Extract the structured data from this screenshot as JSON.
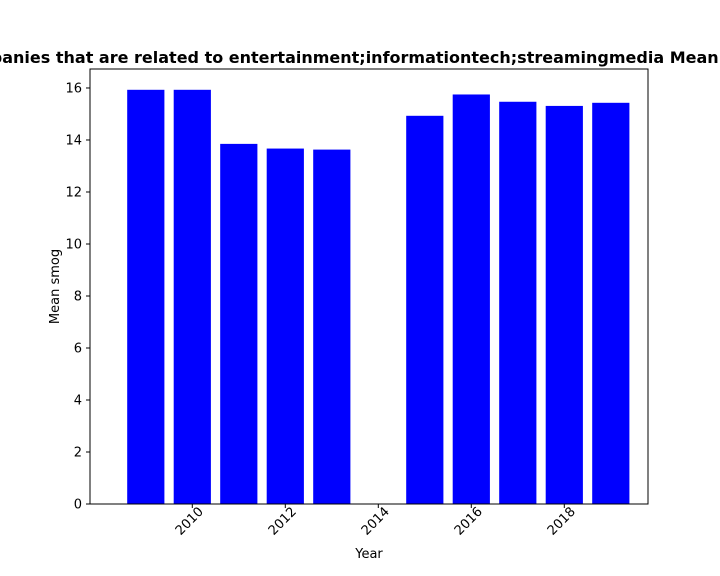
{
  "chart_data": {
    "type": "bar",
    "title": "Mean smog in private companies that are related to entertainment;informationtech;streamingmedia Mean smog in private companies",
    "xlabel": "Year",
    "ylabel": "Mean smog",
    "x": [
      2009,
      2010,
      2011,
      2012,
      2013,
      2015,
      2016,
      2017,
      2018,
      2019
    ],
    "values": [
      15.93,
      15.93,
      13.85,
      13.67,
      13.63,
      14.93,
      15.75,
      15.47,
      15.31,
      15.43
    ],
    "bar_width": 0.8,
    "xlim": [
      2007.8,
      2019.8
    ],
    "ylim": [
      0,
      16.73
    ],
    "x_ticks": [
      2010,
      2012,
      2014,
      2016,
      2018
    ],
    "y_ticks": [
      0,
      2,
      4,
      6,
      8,
      10,
      12,
      14,
      16
    ],
    "x_tick_rotation": 45,
    "bar_color": "#0000ff",
    "grid": false,
    "legend": "none"
  }
}
